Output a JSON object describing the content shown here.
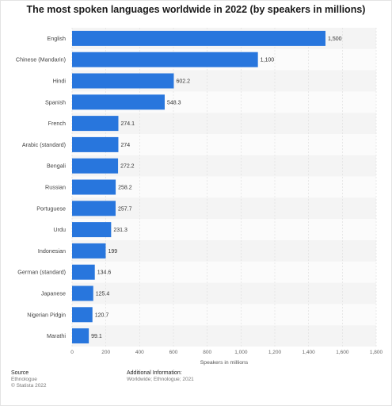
{
  "chart_data": {
    "type": "bar",
    "orientation": "horizontal",
    "title": "The most spoken languages worldwide in 2022 (by speakers in millions)",
    "categories": [
      "English",
      "Chinese (Mandarin)",
      "Hindi",
      "Spanish",
      "French",
      "Arabic (standard)",
      "Bengali",
      "Russian",
      "Portuguese",
      "Urdu",
      "Indonesian",
      "German (standard)",
      "Japanese",
      "Nigerian Pidgin",
      "Marathi"
    ],
    "values": [
      1500,
      1100,
      602.2,
      548.3,
      274.1,
      274,
      272.2,
      258.2,
      257.7,
      231.3,
      199,
      134.6,
      125.4,
      120.7,
      99.1
    ],
    "value_labels": [
      "1,500",
      "1,100",
      "602.2",
      "548.3",
      "274.1",
      "274",
      "272.2",
      "258.2",
      "257.7",
      "231.3",
      "199",
      "134.6",
      "125.4",
      "120.7",
      "99.1"
    ],
    "xlabel": "Speakers in millions",
    "xlim": [
      0,
      1800
    ],
    "xticks": [
      0,
      200,
      400,
      600,
      800,
      1000,
      1200,
      1400,
      1600,
      1800
    ],
    "xtick_labels": [
      "0",
      "200",
      "400",
      "600",
      "800",
      "1,000",
      "1,200",
      "1,400",
      "1,600",
      "1,800"
    ],
    "bar_color": "#2876dd",
    "grid": true
  },
  "footer": {
    "source_heading": "Source",
    "source_name": "Ethnologue",
    "copyright": "© Statista 2022",
    "info_heading": "Additional Information:",
    "info_text": "Worldwide; Ethnologue; 2021"
  }
}
